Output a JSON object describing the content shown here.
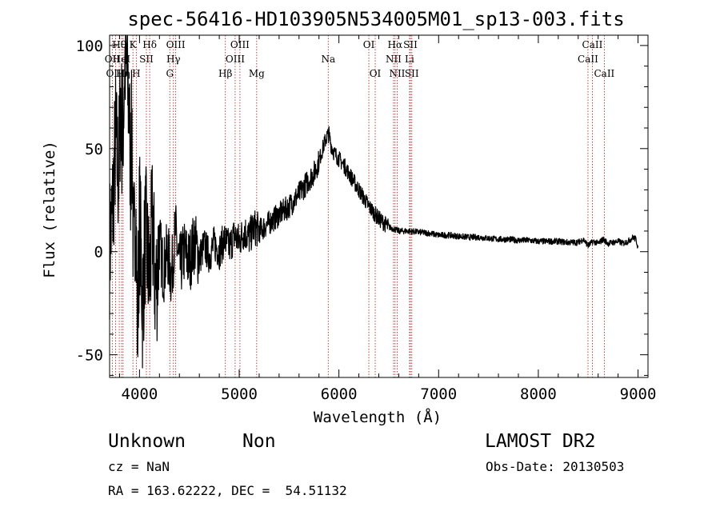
{
  "chart_data": {
    "type": "line",
    "title": "spec-56416-HD103905N534005M01_sp13-003.fits",
    "xlabel": "Wavelength (Å)",
    "ylabel": "Flux (relative)",
    "xlim": [
      3700,
      9100
    ],
    "ylim": [
      -61,
      105
    ],
    "xticks": [
      4000,
      5000,
      6000,
      7000,
      8000,
      9000
    ],
    "yticks": [
      -50,
      0,
      50,
      100
    ],
    "grid": false,
    "series": [
      {
        "x": [
          3700,
          3730,
          3760,
          3790,
          3810,
          3830,
          3850,
          3865,
          3880,
          3895,
          3910,
          3925,
          3940,
          3960,
          3980,
          4000,
          4030,
          4060,
          4100,
          4130,
          4160,
          4200,
          4240,
          4280,
          4320,
          4360,
          4400,
          4450,
          4500,
          4550,
          4600,
          4650,
          4700,
          4750,
          4800,
          4850,
          4900,
          4950,
          5000,
          5050,
          5100,
          5150,
          5200,
          5300,
          5400,
          5500,
          5600,
          5700,
          5750,
          5800,
          5850,
          5880,
          5900,
          5920,
          5950,
          6000,
          6050,
          6100,
          6150,
          6200,
          6250,
          6300,
          6350,
          6400,
          6450,
          6500,
          6550,
          6600,
          6650,
          6700,
          6800,
          6900,
          7000,
          7100,
          7200,
          7300,
          7400,
          7500,
          7600,
          7700,
          7800,
          7900,
          8000,
          8100,
          8200,
          8300,
          8400,
          8450,
          8500,
          8550,
          8600,
          8650,
          8700,
          8800,
          8850,
          8900,
          8950,
          8980,
          9000
        ],
        "y": [
          2,
          20,
          55,
          35,
          75,
          50,
          90,
          95,
          80,
          70,
          40,
          60,
          -10,
          30,
          -40,
          20,
          -25,
          10,
          -15,
          15,
          -20,
          5,
          -10,
          0,
          -12,
          10,
          -8,
          0,
          -5,
          5,
          -3,
          3,
          -2,
          4,
          0,
          6,
          2,
          8,
          5,
          10,
          7,
          12,
          10,
          14,
          18,
          22,
          28,
          35,
          38,
          44,
          52,
          56,
          57,
          52,
          48,
          45,
          42,
          38,
          34,
          30,
          26,
          22,
          19,
          16,
          14,
          12,
          11,
          10,
          10,
          10,
          9.5,
          9,
          8,
          8,
          7.5,
          7,
          7,
          6.5,
          6,
          6,
          5.5,
          5.5,
          5,
          5,
          5,
          4.5,
          4.5,
          6,
          3,
          5,
          4,
          6,
          4,
          5,
          4,
          5,
          7,
          6,
          2
        ]
      }
    ],
    "line_labels": [
      {
        "label": "Hθ",
        "wavelength": 3797,
        "row": 0
      },
      {
        "label": "OII",
        "wavelength": 3727,
        "row": 1
      },
      {
        "label": "HeI",
        "wavelength": 3820,
        "row": 1
      },
      {
        "label": "OIII",
        "wavelength": 3760,
        "row": 2
      },
      {
        "label": "Hη",
        "wavelength": 3835,
        "row": 2
      },
      {
        "label": "K",
        "wavelength": 3934,
        "row": 0
      },
      {
        "label": "SII",
        "wavelength": 4069,
        "row": 1
      },
      {
        "label": "H",
        "wavelength": 3968,
        "row": 2
      },
      {
        "label": "Hδ",
        "wavelength": 4102,
        "row": 0
      },
      {
        "label": "OIII",
        "wavelength": 4363,
        "row": 0
      },
      {
        "label": "Hγ",
        "wavelength": 4340,
        "row": 1
      },
      {
        "label": "G",
        "wavelength": 4304,
        "row": 2
      },
      {
        "label": "OIII",
        "wavelength": 5007,
        "row": 0
      },
      {
        "label": "OIII",
        "wavelength": 4959,
        "row": 1
      },
      {
        "label": "Hβ",
        "wavelength": 4861,
        "row": 2
      },
      {
        "label": "Mg",
        "wavelength": 5175,
        "row": 2
      },
      {
        "label": "Na",
        "wavelength": 5893,
        "row": 1
      },
      {
        "label": "OI",
        "wavelength": 6300,
        "row": 0
      },
      {
        "label": "OI",
        "wavelength": 6364,
        "row": 2
      },
      {
        "label": "Hα",
        "wavelength": 6563,
        "row": 0
      },
      {
        "label": "SII",
        "wavelength": 6717,
        "row": 0
      },
      {
        "label": "NII",
        "wavelength": 6548,
        "row": 1
      },
      {
        "label": "Li",
        "wavelength": 6708,
        "row": 1
      },
      {
        "label": "NII",
        "wavelength": 6584,
        "row": 2
      },
      {
        "label": "SII",
        "wavelength": 6731,
        "row": 2
      },
      {
        "label": "CaII",
        "wavelength": 8542,
        "row": 0
      },
      {
        "label": "CaII",
        "wavelength": 8498,
        "row": 1
      },
      {
        "label": "CaII",
        "wavelength": 8662,
        "row": 2
      }
    ]
  },
  "info": {
    "class": "Unknown",
    "subclass": "Non",
    "survey": "LAMOST DR2",
    "cz": "cz = NaN",
    "obs_date": "Obs-Date: 20130503",
    "coords": "RA = 163.62222, DEC =  54.51132"
  }
}
